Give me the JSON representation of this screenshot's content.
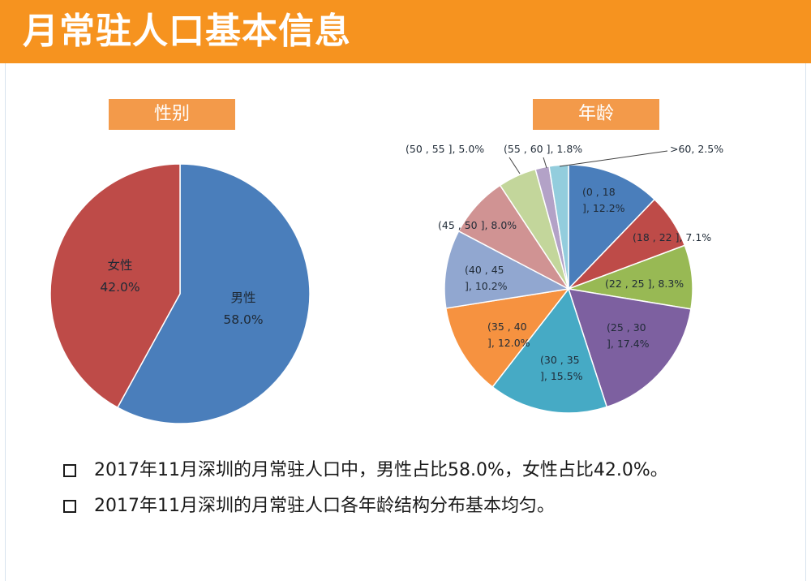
{
  "header": {
    "title": "月常驻人口基本信息"
  },
  "sections": {
    "gender_label": "性别",
    "age_label": "年龄"
  },
  "chart_data": [
    {
      "type": "pie",
      "title": "性别",
      "slices": [
        {
          "name": "男性",
          "value": 58.0,
          "label": "58.0%",
          "color": "#4a7ebb"
        },
        {
          "name": "女性",
          "value": 42.0,
          "label": "42.0%",
          "color": "#be4b48"
        }
      ]
    },
    {
      "type": "pie",
      "title": "年龄",
      "slices": [
        {
          "name": "(0 , 18 ]",
          "value": 12.2,
          "label_lines": [
            "(0 , 18",
            "], 12.2%"
          ],
          "color": "#4a7ebb"
        },
        {
          "name": "(18 , 22 ]",
          "value": 7.1,
          "label_lines": [
            "(18 , 22 ], 7.1%"
          ],
          "color": "#be4b48"
        },
        {
          "name": "(22 , 25 ]",
          "value": 8.3,
          "label_lines": [
            "(22 , 25 ], 8.3%"
          ],
          "color": "#98b954"
        },
        {
          "name": "(25 , 30 ]",
          "value": 17.4,
          "label_lines": [
            "(25 , 30",
            "], 17.4%"
          ],
          "color": "#7d60a0"
        },
        {
          "name": "(30 , 35 ]",
          "value": 15.5,
          "label_lines": [
            "(30 , 35",
            "], 15.5%"
          ],
          "color": "#46aac5"
        },
        {
          "name": "(35 , 40 ]",
          "value": 12.0,
          "label_lines": [
            "(35 , 40",
            "], 12.0%"
          ],
          "color": "#f69240"
        },
        {
          "name": "(40 , 45 ]",
          "value": 10.2,
          "label_lines": [
            "(40 , 45",
            "], 10.2%"
          ],
          "color": "#91a7d0"
        },
        {
          "name": "(45 , 50 ]",
          "value": 8.0,
          "label_lines": [
            "(45 , 50 ], 8.0%"
          ],
          "color": "#d09393"
        },
        {
          "name": "(50 , 55 ]",
          "value": 5.0,
          "label_lines": [
            "(50 , 55 ], 5.0%"
          ],
          "color": "#c3d69b"
        },
        {
          "name": "(55 , 60 ]",
          "value": 1.8,
          "label_lines": [
            "(55 , 60 ], 1.8%"
          ],
          "color": "#b3a2c7"
        },
        {
          "name": ">60",
          "value": 2.5,
          "label_lines": [
            ">60, 2.5%"
          ],
          "color": "#93cddd"
        }
      ]
    }
  ],
  "bullets": [
    "2017年11月深圳的月常驻人口中，男性占比58.0%，女性占比42.0%。",
    "2017年11月深圳的月常驻人口各年龄结构分布基本均匀。"
  ]
}
